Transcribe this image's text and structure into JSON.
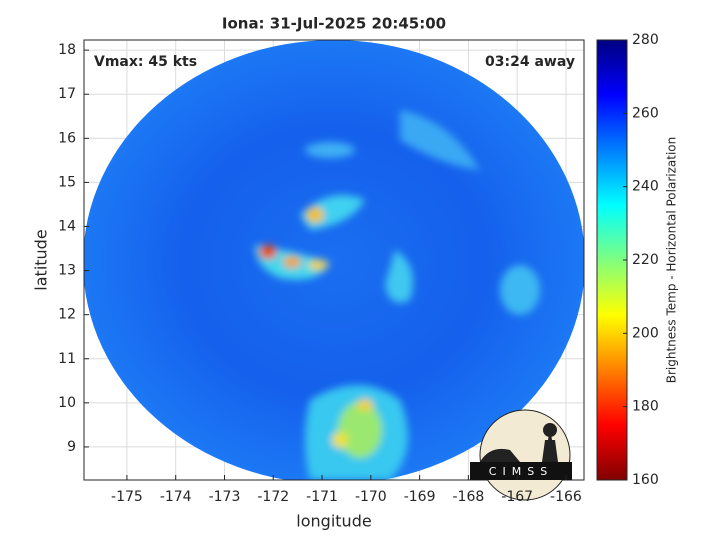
{
  "chart_data": {
    "type": "image",
    "title": "Iona: 31-Jul-2025 20:45:00",
    "xlabel": "longitude",
    "ylabel": "latitude",
    "xlim": [
      -175.88,
      -165.63
    ],
    "ylim": [
      8.25,
      18.23
    ],
    "xticks": [
      -175,
      -174,
      -173,
      -172,
      -171,
      -170,
      -169,
      -168,
      -167,
      -166
    ],
    "yticks": [
      9,
      10,
      11,
      12,
      13,
      14,
      15,
      16,
      17,
      18
    ],
    "grid": true,
    "annotations": [
      "Vmax: 45 kts",
      "03:24 away"
    ],
    "colorbar": {
      "label": "Brightness Temp - Horizontal Polarization",
      "lim": [
        160,
        280
      ],
      "ticks": [
        160,
        180,
        200,
        220,
        240,
        260,
        280
      ],
      "colormap": "jet"
    },
    "logo": "CIMSS"
  }
}
